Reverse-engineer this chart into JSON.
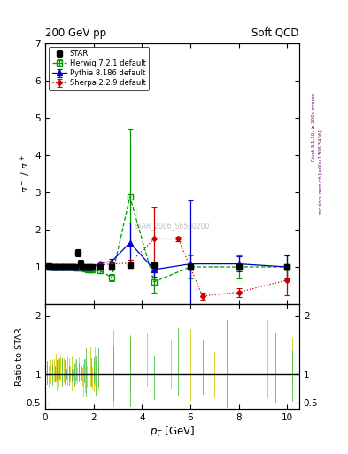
{
  "title_left": "200 GeV pp",
  "title_right": "Soft QCD",
  "ylabel_main": "$\\pi^-$ / $\\pi^+$",
  "ylabel_ratio": "Ratio to STAR",
  "xlabel": "$p_T$ [GeV]",
  "right_label_top": "Rivet 3.1.10, ≥ 100k events",
  "right_label_bottom": "mcplots.cern.ch [arXiv:1306.3436]",
  "watermark": "STAR_2006_S6500200",
  "star_x": [
    0.15,
    0.25,
    0.35,
    0.45,
    0.55,
    0.65,
    0.75,
    0.85,
    0.95,
    1.05,
    1.15,
    1.25,
    1.35,
    1.45,
    1.55,
    1.65,
    1.75,
    1.85,
    1.95,
    2.25,
    2.75,
    3.5,
    4.5,
    6.0,
    8.0,
    10.0
  ],
  "star_y": [
    1.02,
    1.01,
    1.01,
    1.0,
    1.0,
    1.0,
    1.0,
    1.0,
    1.0,
    1.0,
    1.0,
    1.0,
    1.38,
    1.1,
    1.0,
    1.0,
    1.0,
    1.0,
    1.0,
    1.0,
    1.0,
    1.05,
    1.05,
    1.0,
    1.0,
    1.0
  ],
  "star_yerr": [
    0.04,
    0.03,
    0.03,
    0.03,
    0.03,
    0.03,
    0.03,
    0.03,
    0.03,
    0.03,
    0.03,
    0.03,
    0.1,
    0.08,
    0.04,
    0.04,
    0.04,
    0.04,
    0.04,
    0.08,
    0.08,
    0.08,
    0.08,
    0.08,
    0.08,
    0.08
  ],
  "herwig_x": [
    0.15,
    0.25,
    0.35,
    0.45,
    0.55,
    0.65,
    0.75,
    0.85,
    0.95,
    1.05,
    1.15,
    1.25,
    1.35,
    1.45,
    1.55,
    1.65,
    1.75,
    1.85,
    1.95,
    2.25,
    2.75,
    3.5,
    4.5,
    6.0,
    8.0,
    10.0
  ],
  "herwig_y": [
    1.0,
    1.0,
    1.0,
    1.0,
    1.0,
    1.0,
    1.0,
    1.0,
    1.0,
    1.0,
    1.0,
    0.97,
    0.98,
    0.97,
    0.97,
    0.95,
    0.93,
    0.93,
    0.92,
    0.9,
    0.72,
    2.88,
    0.6,
    1.0,
    1.0,
    1.0
  ],
  "herwig_yerr": [
    0.02,
    0.02,
    0.02,
    0.02,
    0.02,
    0.02,
    0.02,
    0.02,
    0.02,
    0.02,
    0.02,
    0.03,
    0.03,
    0.03,
    0.03,
    0.03,
    0.03,
    0.03,
    0.04,
    0.06,
    0.1,
    1.8,
    0.3,
    0.3,
    0.3,
    0.3
  ],
  "pythia_x": [
    0.15,
    0.25,
    0.35,
    0.45,
    0.55,
    0.65,
    0.75,
    0.85,
    0.95,
    1.05,
    1.15,
    1.25,
    1.35,
    1.45,
    1.55,
    1.65,
    1.75,
    1.85,
    1.95,
    2.25,
    2.75,
    3.5,
    4.5,
    6.0,
    8.0,
    10.0
  ],
  "pythia_y": [
    1.0,
    1.0,
    1.0,
    1.0,
    1.0,
    1.0,
    1.0,
    1.0,
    1.0,
    1.0,
    1.0,
    0.99,
    0.99,
    1.0,
    1.0,
    1.0,
    1.0,
    1.0,
    1.0,
    1.1,
    1.15,
    1.65,
    0.93,
    1.08,
    1.08,
    1.0
  ],
  "pythia_yerr": [
    0.01,
    0.01,
    0.01,
    0.01,
    0.01,
    0.01,
    0.01,
    0.01,
    0.01,
    0.01,
    0.01,
    0.01,
    0.01,
    0.01,
    0.01,
    0.01,
    0.01,
    0.01,
    0.01,
    0.04,
    0.06,
    0.55,
    0.2,
    1.7,
    0.2,
    0.3
  ],
  "sherpa_x": [
    0.15,
    0.25,
    0.35,
    0.45,
    0.55,
    0.65,
    0.75,
    0.85,
    0.95,
    1.05,
    1.15,
    1.25,
    1.35,
    1.45,
    1.55,
    1.65,
    1.75,
    1.85,
    1.95,
    2.25,
    2.75,
    3.5,
    4.5,
    5.5,
    6.5,
    8.0,
    10.0
  ],
  "sherpa_y": [
    1.0,
    1.0,
    1.0,
    1.0,
    1.0,
    1.0,
    1.0,
    1.0,
    1.0,
    1.0,
    1.0,
    1.0,
    1.0,
    1.0,
    1.0,
    1.0,
    1.0,
    1.0,
    1.0,
    1.05,
    1.08,
    1.1,
    1.75,
    1.75,
    0.22,
    0.32,
    0.65
  ],
  "sherpa_yerr": [
    0.02,
    0.02,
    0.02,
    0.02,
    0.02,
    0.02,
    0.02,
    0.02,
    0.02,
    0.02,
    0.02,
    0.02,
    0.02,
    0.02,
    0.02,
    0.02,
    0.02,
    0.02,
    0.02,
    0.05,
    0.06,
    0.1,
    0.85,
    0.05,
    0.1,
    0.12,
    0.4
  ],
  "ylim_main": [
    0,
    7
  ],
  "ylim_ratio": [
    0.4,
    2.2
  ],
  "xlim": [
    0,
    10.5
  ],
  "color_star": "#000000",
  "color_herwig": "#009900",
  "color_pythia": "#0000cc",
  "color_sherpa": "#cc0000",
  "color_ratio_yellow": "#cccc00",
  "color_ratio_green": "#44bb44",
  "main_yticks": [
    1,
    2,
    3,
    4,
    5,
    6,
    7
  ],
  "ratio_yticks": [
    0.5,
    1.0,
    2.0
  ],
  "xticks": [
    0,
    2,
    4,
    6,
    8,
    10
  ]
}
